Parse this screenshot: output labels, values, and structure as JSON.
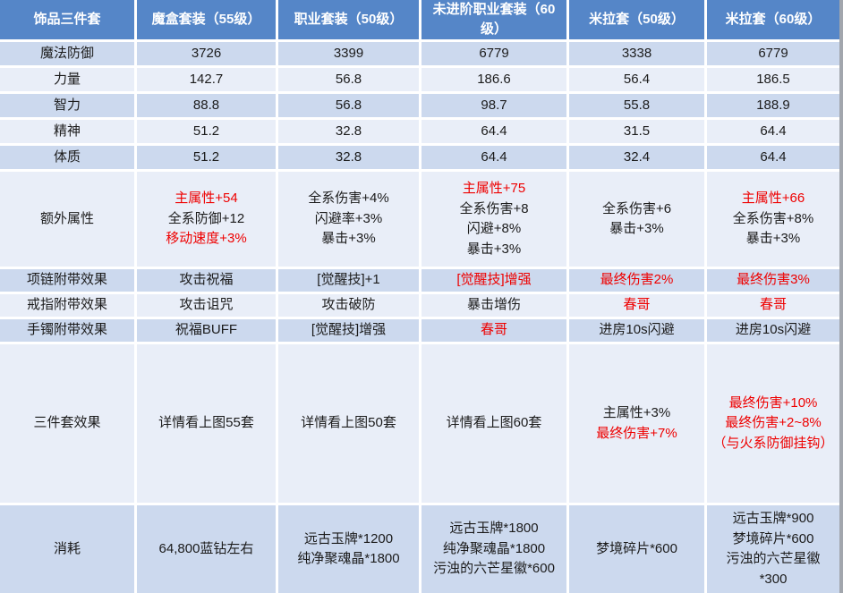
{
  "colors": {
    "header_bg": "#5586c8",
    "row_dark": "#ccd9ee",
    "row_light": "#e9eef8",
    "red_text": "#ee0000"
  },
  "chart_data": {
    "type": "table",
    "title": "饰品三件套",
    "columns": [
      "饰品三件套",
      "魔盒套装（55级）",
      "职业套装（50级）",
      "未进阶职业套装（60级）",
      "米拉套（50级）",
      "米拉套（60级）"
    ],
    "rows": {
      "magic_defense": {
        "label": "魔法防御",
        "values": [
          "3726",
          "3399",
          "6779",
          "3338",
          "6779"
        ]
      },
      "strength": {
        "label": "力量",
        "values": [
          "142.7",
          "56.8",
          "186.6",
          "56.4",
          "186.5"
        ]
      },
      "intelligence": {
        "label": "智力",
        "values": [
          "88.8",
          "56.8",
          "98.7",
          "55.8",
          "188.9"
        ]
      },
      "spirit": {
        "label": "精神",
        "values": [
          "51.2",
          "32.8",
          "64.4",
          "31.5",
          "64.4"
        ]
      },
      "constitution": {
        "label": "体质",
        "values": [
          "51.2",
          "32.8",
          "64.4",
          "32.4",
          "64.4"
        ]
      },
      "extra_attributes": {
        "label": "额外属性",
        "cells": [
          [
            "主属性+54",
            "全系防御+12",
            "移动速度+3%"
          ],
          [
            "全系伤害+4%",
            "闪避率+3%",
            "暴击+3%"
          ],
          [
            "主属性+75",
            "全系伤害+8",
            "闪避+8%",
            "暴击+3%"
          ],
          [
            "全系伤害+6",
            "暴击+3%"
          ],
          [
            "主属性+66",
            "全系伤害+8%",
            "暴击+3%"
          ]
        ]
      },
      "necklace_effect": {
        "label": "项链附带效果",
        "values": [
          "攻击祝福",
          "[觉醒技]+1",
          "[觉醒技]增强",
          "最终伤害2%",
          "最终伤害3%"
        ]
      },
      "ring_effect": {
        "label": "戒指附带效果",
        "values": [
          "攻击诅咒",
          "攻击破防",
          "暴击增伤",
          "春哥",
          "春哥"
        ]
      },
      "bracelet_effect": {
        "label": "手镯附带效果",
        "values": [
          "祝福BUFF",
          "[觉醒技]增强",
          "春哥",
          "进房10s闪避",
          "进房10s闪避"
        ]
      },
      "set_effect": {
        "label": "三件套效果",
        "cells": [
          [
            "详情看上图55套"
          ],
          [
            "详情看上图50套"
          ],
          [
            "详情看上图60套"
          ],
          [
            "主属性+3%",
            "最终伤害+7%"
          ],
          [
            "最终伤害+10%",
            "最终伤害+2~8%",
            "（与火系防御挂钩）"
          ]
        ]
      },
      "cost": {
        "label": "消耗",
        "cells": [
          [
            "64,800蓝钻左右"
          ],
          [
            "远古玉牌*1200",
            "纯净聚魂晶*1800"
          ],
          [
            "远古玉牌*1800",
            "纯净聚魂晶*1800",
            "污浊的六芒星徽*600"
          ],
          [
            "梦境碎片*600"
          ],
          [
            "远古玉牌*900",
            "梦境碎片*600",
            "污浊的六芒星徽",
            "*300"
          ]
        ]
      }
    }
  }
}
